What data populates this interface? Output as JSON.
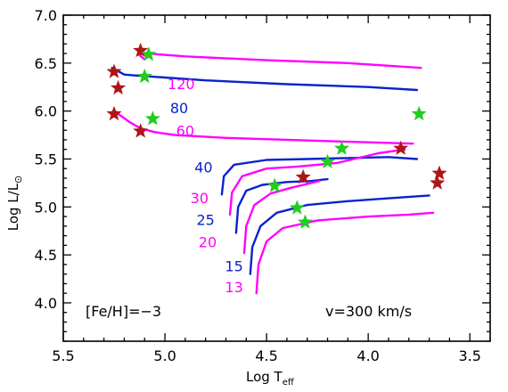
{
  "chart_data": {
    "type": "line",
    "title": "",
    "xlabel": "Log T",
    "xlabel_sub": "eff",
    "ylabel": "Log L/L",
    "ylabel_symbol": "⊙",
    "xlim": [
      5.5,
      3.4
    ],
    "ylim": [
      3.6,
      7.0
    ],
    "x_ticks": [
      5.5,
      5.0,
      4.5,
      4.0,
      3.5
    ],
    "x_tick_labels": [
      "5.5",
      "5.0",
      "4.5",
      "4.0",
      "3.5"
    ],
    "y_ticks": [
      4.0,
      4.5,
      5.0,
      5.5,
      6.0,
      6.5,
      7.0
    ],
    "y_tick_labels": [
      "4.0",
      "4.5",
      "5.0",
      "5.5",
      "6.0",
      "6.5",
      "7.0"
    ],
    "grid": false,
    "legend": "none",
    "colors": {
      "magenta": "#ff00ff",
      "blue": "#0a22cc",
      "star_red": "#b01515",
      "star_green": "#22cc22"
    },
    "annotations": [
      "[Fe/H]=−3",
      "v=300 km/s"
    ],
    "series": [
      {
        "name": "120",
        "color": "#ff00ff",
        "label_at": [
          4.92,
          6.23
        ],
        "points": [
          [
            5.1,
            6.54
          ],
          [
            5.13,
            6.59
          ],
          [
            5.08,
            6.6
          ],
          [
            5.03,
            6.59
          ],
          [
            4.9,
            6.57
          ],
          [
            4.5,
            6.53
          ],
          [
            4.1,
            6.5
          ],
          [
            3.74,
            6.45
          ]
        ]
      },
      {
        "name": "80",
        "color": "#0a22cc",
        "label_at": [
          4.93,
          5.98
        ],
        "points": [
          [
            5.26,
            6.45
          ],
          [
            5.2,
            6.38
          ],
          [
            5.14,
            6.37
          ],
          [
            5.07,
            6.36
          ],
          [
            5.0,
            6.35
          ],
          [
            4.8,
            6.32
          ],
          [
            4.4,
            6.28
          ],
          [
            4.0,
            6.25
          ],
          [
            3.76,
            6.22
          ]
        ]
      },
      {
        "name": "60",
        "color": "#ff00ff",
        "label_at": [
          4.9,
          5.74
        ],
        "points": [
          [
            5.25,
            6.0
          ],
          [
            5.17,
            5.88
          ],
          [
            5.12,
            5.82
          ],
          [
            5.05,
            5.78
          ],
          [
            4.95,
            5.75
          ],
          [
            4.7,
            5.72
          ],
          [
            4.4,
            5.7
          ],
          [
            4.1,
            5.68
          ],
          [
            3.78,
            5.66
          ]
        ]
      },
      {
        "name": "40",
        "color": "#0a22cc",
        "label_at": [
          4.81,
          5.36
        ],
        "points": [
          [
            4.72,
            5.13
          ],
          [
            4.71,
            5.32
          ],
          [
            4.66,
            5.44
          ],
          [
            4.5,
            5.49
          ],
          [
            4.3,
            5.5
          ],
          [
            4.1,
            5.51
          ],
          [
            3.9,
            5.52
          ],
          [
            3.76,
            5.5
          ]
        ]
      },
      {
        "name": "30",
        "color": "#ff00ff",
        "label_at": [
          4.83,
          5.04
        ],
        "points": [
          [
            4.68,
            4.92
          ],
          [
            4.67,
            5.15
          ],
          [
            4.62,
            5.32
          ],
          [
            4.5,
            5.4
          ],
          [
            4.35,
            5.42
          ],
          [
            4.15,
            5.46
          ],
          [
            3.95,
            5.56
          ],
          [
            3.82,
            5.6
          ]
        ]
      },
      {
        "name": "25",
        "color": "#0a22cc",
        "label_at": [
          4.8,
          4.81
        ],
        "points": [
          [
            4.65,
            4.73
          ],
          [
            4.64,
            5.0
          ],
          [
            4.6,
            5.17
          ],
          [
            4.52,
            5.23
          ],
          [
            4.4,
            5.26
          ],
          [
            4.28,
            5.27
          ],
          [
            4.2,
            5.29
          ]
        ]
      },
      {
        "name": "20",
        "color": "#ff00ff",
        "label_at": [
          4.79,
          4.58
        ],
        "points": [
          [
            4.61,
            4.52
          ],
          [
            4.6,
            4.8
          ],
          [
            4.56,
            5.02
          ],
          [
            4.48,
            5.14
          ],
          [
            4.38,
            5.2
          ],
          [
            4.3,
            5.24
          ],
          [
            4.24,
            5.27
          ]
        ]
      },
      {
        "name": "15",
        "color": "#0a22cc",
        "label_at": [
          4.66,
          4.33
        ],
        "points": [
          [
            4.58,
            4.3
          ],
          [
            4.57,
            4.58
          ],
          [
            4.53,
            4.8
          ],
          [
            4.45,
            4.94
          ],
          [
            4.3,
            5.02
          ],
          [
            4.1,
            5.06
          ],
          [
            3.9,
            5.09
          ],
          [
            3.7,
            5.12
          ]
        ]
      },
      {
        "name": "13",
        "color": "#ff00ff",
        "label_at": [
          4.66,
          4.11
        ],
        "points": [
          [
            4.55,
            4.1
          ],
          [
            4.54,
            4.4
          ],
          [
            4.5,
            4.64
          ],
          [
            4.42,
            4.78
          ],
          [
            4.25,
            4.86
          ],
          [
            4.0,
            4.9
          ],
          [
            3.8,
            4.92
          ],
          [
            3.68,
            4.94
          ]
        ]
      }
    ],
    "red_stars": [
      [
        5.12,
        6.63
      ],
      [
        5.25,
        6.41
      ],
      [
        5.23,
        6.24
      ],
      [
        5.25,
        5.97
      ],
      [
        5.12,
        5.79
      ],
      [
        4.32,
        5.31
      ],
      [
        3.84,
        5.61
      ],
      [
        3.65,
        5.35
      ],
      [
        3.66,
        5.25
      ]
    ],
    "green_stars": [
      [
        5.08,
        6.59
      ],
      [
        5.1,
        6.36
      ],
      [
        5.06,
        5.92
      ],
      [
        3.75,
        5.97
      ],
      [
        4.13,
        5.61
      ],
      [
        4.2,
        5.47
      ],
      [
        4.46,
        5.22
      ],
      [
        4.35,
        4.99
      ],
      [
        4.31,
        4.84
      ]
    ]
  }
}
